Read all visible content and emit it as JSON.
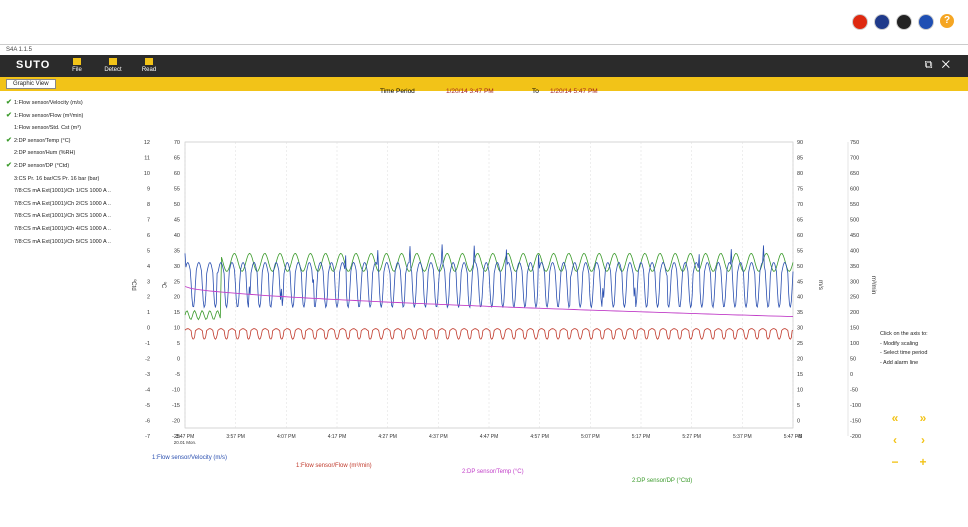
{
  "top": {
    "flags": [
      {
        "name": "china-flag-icon",
        "color": "#de2910"
      },
      {
        "name": "uk-flag-icon",
        "color": "#1f3a8a"
      },
      {
        "name": "germany-flag-icon",
        "color": "#222222"
      },
      {
        "name": "france-flag-icon",
        "color": "#1f4fb3"
      }
    ],
    "help_label": "?"
  },
  "window": {
    "title": "S4A 1.1.5",
    "logo": "SUTO",
    "menu": [
      {
        "label": "File",
        "icon": "file-icon"
      },
      {
        "label": "Detect",
        "icon": "detect-icon"
      },
      {
        "label": "Read",
        "icon": "read-icon"
      }
    ],
    "tab_label": "Graphic View"
  },
  "period": {
    "label": "Time Period",
    "from": "1/20/14 3:47 PM",
    "to_label": "To",
    "to": "1/20/14 5:47 PM"
  },
  "sensors": [
    {
      "label": "1:Flow sensor/Velocity (m/s)",
      "checked": true
    },
    {
      "label": "1:Flow sensor/Flow (m³/min)",
      "checked": true
    },
    {
      "label": "1:Flow sensor/Std. Cst (m³)",
      "checked": false
    },
    {
      "label": "2:DP sensor/Temp (°C)",
      "checked": true
    },
    {
      "label": "2:DP sensor/Hum (%RH)",
      "checked": false
    },
    {
      "label": "2:DP sensor/DP (°Ctd)",
      "checked": true
    },
    {
      "label": "3:CS Pr. 16 bar/CS Pr. 16 bar (bar)",
      "checked": false
    },
    {
      "label": "7/8:CS mA Ext(1001)/Ch 1/CS 1000 A ...",
      "checked": false
    },
    {
      "label": "7/8:CS mA Ext(1001)/Ch 2/CS 1000 A ...",
      "checked": false
    },
    {
      "label": "7/8:CS mA Ext(1001)/Ch 3/CS 1000 A ...",
      "checked": false
    },
    {
      "label": "7/8:CS mA Ext(1001)/Ch 4/CS 1000 A ...",
      "checked": false
    },
    {
      "label": "7/8:CS mA Ext(1001)/Ch 5/CS 1000 A ...",
      "checked": false
    }
  ],
  "hint": {
    "lines": [
      "Click on the axis to:",
      "- Modify scaling",
      "- Select time period",
      "- Add alarm line"
    ]
  },
  "nav": [
    "«",
    "»",
    "‹",
    "›",
    "−",
    "+"
  ],
  "chart_data": {
    "type": "line",
    "x_ticks": [
      "3:47 PM",
      "3:57 PM",
      "4:07 PM",
      "4:17 PM",
      "4:27 PM",
      "4:37 PM",
      "4:47 PM",
      "4:57 PM",
      "5:07 PM",
      "5:17 PM",
      "5:27 PM",
      "5:37 PM",
      "5:47 PM"
    ],
    "x_first_sub": "20.01 Mon.",
    "axes": [
      {
        "label": "ºCtd",
        "ticks": [
          "12",
          "11",
          "10",
          "9",
          "8",
          "7",
          "6",
          "5",
          "4",
          "3",
          "2",
          "1",
          "0",
          "-1",
          "-2",
          "-3",
          "-4",
          "-5",
          "-6",
          "-7"
        ]
      },
      {
        "label": "ºC",
        "ticks": [
          "70",
          "65",
          "60",
          "55",
          "50",
          "45",
          "40",
          "35",
          "30",
          "25",
          "20",
          "15",
          "10",
          "5",
          "0",
          "-5",
          "-10",
          "-15",
          "-20",
          "-25"
        ]
      },
      {
        "label": "m/s",
        "ticks": [
          "90",
          "85",
          "80",
          "75",
          "70",
          "65",
          "60",
          "55",
          "50",
          "45",
          "40",
          "35",
          "30",
          "25",
          "20",
          "15",
          "10",
          "5",
          "0",
          "-5"
        ]
      },
      {
        "label": "m³/min",
        "ticks": [
          "750",
          "700",
          "650",
          "600",
          "550",
          "500",
          "450",
          "400",
          "350",
          "300",
          "250",
          "200",
          "150",
          "100",
          "50",
          "0",
          "-50",
          "-100",
          "-150",
          "-200"
        ]
      }
    ],
    "series": [
      {
        "name": "1:Flow sensor/Velocity (m/s)",
        "color": "#2a4fb0",
        "axis": "m/s",
        "base": 46,
        "amp": 8
      },
      {
        "name": "1:Flow sensor/Flow (m³/min)",
        "color": "#c0392b",
        "axis": "m³/min",
        "base": 120,
        "amp": 15
      },
      {
        "name": "2:DP sensor/Temp (°C)",
        "color": "#c13fc8",
        "axis": "°C",
        "start": 22,
        "end": 12
      },
      {
        "name": "2:DP sensor/DP (°Ctd)",
        "color": "#3a9a2a",
        "axis": "°Ctd",
        "base": 4,
        "amp": 0.5
      }
    ]
  }
}
